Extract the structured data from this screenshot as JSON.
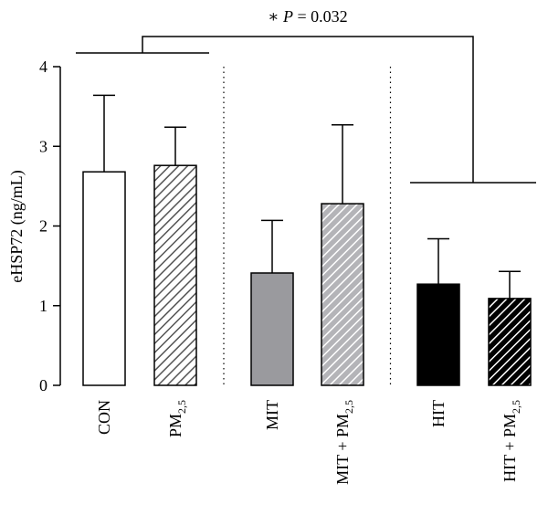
{
  "chart_data": {
    "type": "bar",
    "title": "",
    "xlabel": "",
    "ylabel": "eHSP72 (ng/mL)",
    "ylim": [
      0,
      4
    ],
    "y_ticks": [
      0,
      1,
      2,
      3,
      4
    ],
    "grid": false,
    "legend": "none",
    "categories": [
      {
        "label": "CON",
        "sub": ""
      },
      {
        "label": "PM",
        "sub": "2,5"
      },
      {
        "label": "MIT",
        "sub": ""
      },
      {
        "label": "MIT + PM",
        "sub": "2,5"
      },
      {
        "label": "HIT",
        "sub": ""
      },
      {
        "label": "HIT + PM",
        "sub": "2,5"
      }
    ],
    "values": [
      2.68,
      2.76,
      1.41,
      2.28,
      1.27,
      1.09
    ],
    "error_upper": [
      3.64,
      3.24,
      2.07,
      3.27,
      1.84,
      1.43
    ],
    "bar_styles": [
      {
        "fill": "#ffffff",
        "pattern": "none",
        "stripe": ""
      },
      {
        "fill": "#ffffff",
        "pattern": "hatch",
        "stripe": "#555555"
      },
      {
        "fill": "#9a9a9e",
        "pattern": "none",
        "stripe": ""
      },
      {
        "fill": "#b4b4b8",
        "pattern": "hatch",
        "stripe": "#ffffff"
      },
      {
        "fill": "#000000",
        "pattern": "none",
        "stripe": ""
      },
      {
        "fill": "#000000",
        "pattern": "hatch",
        "stripe": "#ffffff"
      }
    ],
    "group_separators_after": [
      1,
      3
    ],
    "annotation": {
      "prefix": "∗",
      "p_label": "P",
      "equals": "= 0.032",
      "compares": [
        [
          0,
          1
        ],
        [
          4,
          5
        ]
      ]
    }
  }
}
